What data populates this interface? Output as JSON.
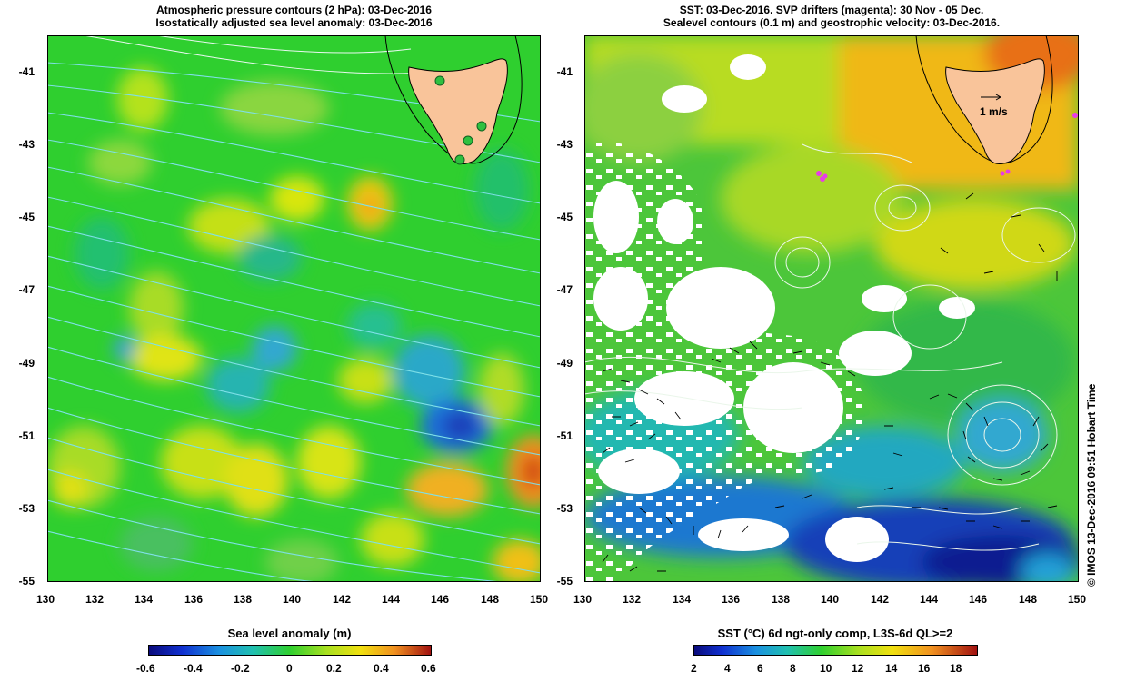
{
  "left_panel": {
    "title_line1": "Atmospheric pressure contours (2 hPa): 03-Dec-2016",
    "title_line2": "Isostatically adjusted sea level anomaly: 03-Dec-2016",
    "colorbar_title": "Sea level anomaly (m)",
    "colorbar_ticks": [
      "-0.6",
      "-0.4",
      "-0.2",
      "0",
      "0.2",
      "0.4",
      "0.6"
    ]
  },
  "right_panel": {
    "title_line1": "SST: 03-Dec-2016. SVP drifters (magenta): 30 Nov - 05 Dec.",
    "title_line2": "Sealevel contours (0.1 m) and geostrophic velocity: 03-Dec-2016.",
    "velocity_scale_label": "1 m/s",
    "colorbar_title": "SST (°C) 6d ngt-only comp, L3S-6d QL>=2",
    "colorbar_ticks": [
      "2",
      "4",
      "6",
      "8",
      "10",
      "12",
      "14",
      "16",
      "18"
    ],
    "side_label": "© IMOS 13-Dec-2016 09:51 Hobart Time"
  },
  "axes": {
    "x_ticks": [
      "130",
      "132",
      "134",
      "136",
      "138",
      "140",
      "142",
      "144",
      "146",
      "148",
      "150"
    ],
    "y_ticks": [
      "-41",
      "-43",
      "-45",
      "-47",
      "-49",
      "-51",
      "-53",
      "-55"
    ]
  },
  "colors": {
    "land": "#f9c49a",
    "slp_contour": "#7fe0e8",
    "sla_base": "#2fcf2f",
    "drifter": "#e83ce8"
  }
}
